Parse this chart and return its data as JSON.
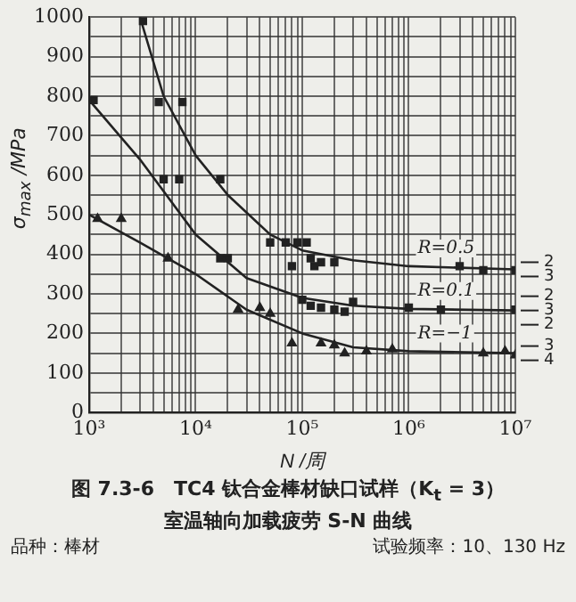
{
  "chart_data": {
    "type": "line",
    "title": "图 7.3-6　TC4 钛合金棒材缺口试样（K$_{t}$ = 3）",
    "subtitle": "室温轴向加载疲劳 S-N 曲线",
    "xlabel": "N /周",
    "ylabel": "σ$_{max}$ /MPa",
    "log": "x",
    "grid": true,
    "legend": false,
    "line_style": "solid",
    "xlim": [
      1000,
      10000000
    ],
    "ylim": [
      0,
      1000
    ],
    "xticks": [
      {
        "value": 1000,
        "label": "10³"
      },
      {
        "value": 2000,
        "label": null
      },
      {
        "value": 3000,
        "label": null
      },
      {
        "value": 4000,
        "label": null
      },
      {
        "value": 5000,
        "label": null
      },
      {
        "value": 6000,
        "label": null
      },
      {
        "value": 7000,
        "label": null
      },
      {
        "value": 8000,
        "label": null
      },
      {
        "value": 9000,
        "label": null
      },
      {
        "value": 10000,
        "label": "10⁴"
      },
      {
        "value": 20000,
        "label": null
      },
      {
        "value": 30000,
        "label": null
      },
      {
        "value": 40000,
        "label": null
      },
      {
        "value": 50000,
        "label": null
      },
      {
        "value": 60000,
        "label": null
      },
      {
        "value": 70000,
        "label": null
      },
      {
        "value": 80000,
        "label": null
      },
      {
        "value": 90000,
        "label": null
      },
      {
        "value": 100000,
        "label": "10⁵"
      },
      {
        "value": 200000,
        "label": null
      },
      {
        "value": 300000,
        "label": null
      },
      {
        "value": 400000,
        "label": null
      },
      {
        "value": 500000,
        "label": null
      },
      {
        "value": 600000,
        "label": null
      },
      {
        "value": 700000,
        "label": null
      },
      {
        "value": 800000,
        "label": null
      },
      {
        "value": 900000,
        "label": null
      },
      {
        "value": 1000000,
        "label": "10⁶"
      },
      {
        "value": 2000000,
        "label": null
      },
      {
        "value": 3000000,
        "label": null
      },
      {
        "value": 4000000,
        "label": null
      },
      {
        "value": 5000000,
        "label": null
      },
      {
        "value": 6000000,
        "label": null
      },
      {
        "value": 7000000,
        "label": null
      },
      {
        "value": 8000000,
        "label": null
      },
      {
        "value": 9000000,
        "label": null
      },
      {
        "value": 10000000,
        "label": "10⁷"
      }
    ],
    "yticks": [
      0,
      {
        "value": 50,
        "label": null
      },
      100,
      {
        "value": 150,
        "label": null
      },
      200,
      {
        "value": 250,
        "label": null
      },
      300,
      {
        "value": 350,
        "label": null
      },
      400,
      {
        "value": 450,
        "label": null
      },
      500,
      {
        "value": 550,
        "label": null
      },
      600,
      {
        "value": 650,
        "label": null
      },
      700,
      {
        "value": 750,
        "label": null
      },
      800,
      {
        "value": 850,
        "label": null
      },
      900,
      {
        "value": 950,
        "label": null
      },
      1000
    ],
    "series": [
      {
        "name": "R=0.5",
        "color": "#222222",
        "marker": "none",
        "x": [
          3000,
          5000,
          10000,
          20000,
          50000,
          100000,
          300000,
          1000000,
          10000000
        ],
        "values": [
          1000,
          800,
          650,
          550,
          450,
          410,
          385,
          370,
          362
        ]
      },
      {
        "name": "R=0.1",
        "color": "#222222",
        "marker": "none",
        "x": [
          1000,
          3000,
          10000,
          30000,
          100000,
          300000,
          1000000,
          10000000
        ],
        "values": [
          790,
          640,
          450,
          340,
          290,
          270,
          262,
          258
        ]
      },
      {
        "name": "R=−1",
        "color": "#222222",
        "marker": "none",
        "x": [
          1000,
          3000,
          10000,
          30000,
          100000,
          300000,
          1000000,
          10000000
        ],
        "values": [
          500,
          430,
          350,
          260,
          200,
          165,
          155,
          150
        ]
      },
      {
        "type": "scatter",
        "color": "#222222",
        "marker": "square",
        "x": [
          3200,
          4500,
          7500,
          17000,
          50000,
          70000,
          90000,
          80000,
          110000,
          120000,
          130000,
          150000,
          200000,
          3000000,
          5000000,
          10000000
        ],
        "values": [
          990,
          785,
          785,
          590,
          430,
          430,
          430,
          370,
          430,
          390,
          370,
          380,
          380,
          370,
          360,
          360
        ]
      },
      {
        "type": "scatter",
        "color": "#222222",
        "marker": "square",
        "x": [
          1100,
          5000,
          7000,
          17000,
          20000,
          100000,
          120000,
          150000,
          200000,
          250000,
          300000,
          1000000,
          2000000,
          10000000
        ],
        "values": [
          790,
          590,
          590,
          390,
          390,
          285,
          270,
          265,
          260,
          255,
          280,
          265,
          260,
          260
        ]
      },
      {
        "type": "scatter",
        "color": "#222222",
        "marker": "triangle",
        "x": [
          1200,
          2000,
          5500,
          25000,
          40000,
          50000,
          80000,
          150000,
          200000,
          250000,
          400000,
          700000,
          5000000,
          8000000,
          10000000
        ],
        "values": [
          490,
          490,
          390,
          260,
          265,
          250,
          175,
          175,
          170,
          150,
          155,
          160,
          150,
          155,
          145
        ]
      }
    ],
    "annotations": [
      "2\n3",
      "2\n3\n2",
      "3\n4",
      "品种：棒材",
      "试验频率：10、130 Hz"
    ]
  }
}
